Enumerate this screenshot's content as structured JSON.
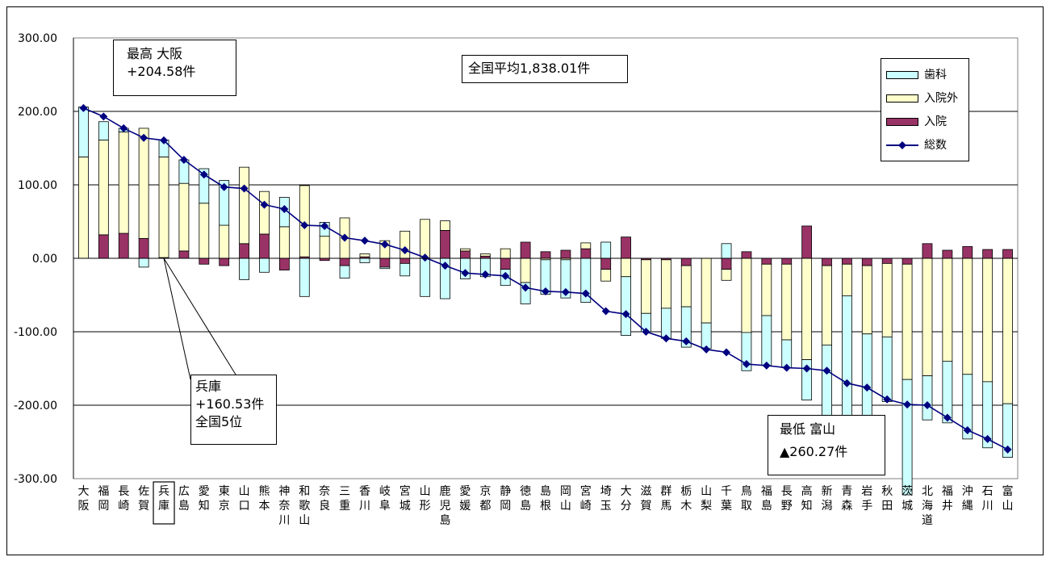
{
  "chart_data": {
    "type": "bar",
    "title": "",
    "xlabel": "",
    "ylabel": "",
    "ylim": [
      -300,
      300
    ],
    "yticks": [
      "300.00",
      "200.00",
      "100.00",
      "0.00",
      "-100.00",
      "-200.00",
      "-300.00"
    ],
    "grid": true,
    "legend_position": "top-right",
    "categories": [
      "大阪",
      "福岡",
      "長崎",
      "佐賀",
      "兵庫",
      "広島",
      "愛知",
      "東京",
      "山口",
      "熊本",
      "神奈川",
      "和歌山",
      "奈良",
      "三重",
      "香川",
      "岐阜",
      "宮城",
      "山形",
      "鹿児島",
      "愛媛",
      "京都",
      "静岡",
      "徳島",
      "島根",
      "岡山",
      "宮崎",
      "埼玉",
      "大分",
      "滋賀",
      "群馬",
      "栃木",
      "山梨",
      "千葉",
      "鳥取",
      "福島",
      "長野",
      "高知",
      "新潟",
      "青森",
      "岩手",
      "秋田",
      "茨城",
      "北海道",
      "福井",
      "沖縄",
      "石川",
      "富山"
    ],
    "highlight_category": "兵庫",
    "series": [
      {
        "name": "歯科",
        "type": "stacked-bar",
        "color": "#ccffff",
        "values": [
          68,
          25,
          5,
          -12,
          23,
          32,
          47,
          61,
          -29,
          -19,
          40,
          -52,
          19,
          -17,
          -6,
          -2,
          -17,
          -52,
          -55,
          -28,
          -25,
          -22,
          -29,
          -47,
          -52,
          -60,
          22,
          -80,
          -25,
          -41,
          -55,
          -35,
          20,
          -52,
          -68,
          -38,
          -55,
          -110,
          -168,
          -115,
          -88,
          -157,
          -60,
          -84,
          -88,
          -90,
          -73
        ]
      },
      {
        "name": "入院外",
        "type": "stacked-bar",
        "color": "#ffffcc",
        "values": [
          138,
          129,
          138,
          150,
          137,
          92,
          75,
          45,
          104,
          58,
          43,
          97,
          30,
          55,
          4,
          24,
          37,
          53,
          13,
          3,
          3,
          13,
          -33,
          -2,
          -2,
          8,
          -16,
          -25,
          -73,
          -66,
          -56,
          -88,
          -15,
          -101,
          -70,
          -103,
          -138,
          -108,
          -43,
          -93,
          -100,
          -157,
          -160,
          -140,
          -158,
          -168,
          -198
        ]
      },
      {
        "name": "入院",
        "type": "stacked-bar",
        "color": "#993366",
        "values": [
          0,
          32,
          34,
          27,
          1,
          10,
          -8,
          -10,
          20,
          33,
          -16,
          2,
          -3,
          -10,
          2,
          -12,
          -7,
          0,
          38,
          10,
          3,
          -15,
          22,
          9,
          11,
          13,
          -15,
          29,
          -2,
          -2,
          -10,
          0,
          -15,
          9,
          -8,
          -8,
          44,
          -10,
          -8,
          -10,
          -7,
          -8,
          20,
          11,
          16,
          12,
          12
        ]
      },
      {
        "name": "総数",
        "type": "line",
        "color": "#000080",
        "values": [
          204.58,
          193,
          177,
          164,
          160.53,
          134,
          114,
          97,
          95,
          73,
          67,
          45,
          44,
          28,
          24,
          19,
          11,
          1,
          -10,
          -20,
          -22,
          -24,
          -40,
          -45,
          -46,
          -48,
          -72,
          -76,
          -100,
          -109,
          -113,
          -124,
          -128,
          -144,
          -146,
          -149,
          -150,
          -153,
          -170,
          -176,
          -192,
          -199,
          -200,
          -217,
          -234,
          -246,
          -260.27
        ]
      }
    ],
    "annotations": {
      "average": "全国平均1,838.01件",
      "max": {
        "line1": "最高 大阪",
        "line2": "+204.58件"
      },
      "hyogo": {
        "line1": "兵庫",
        "line2": "+160.53件",
        "line3": "全国5位"
      },
      "min": {
        "line1": "最低 富山",
        "line2": "▲260.27件"
      }
    }
  }
}
